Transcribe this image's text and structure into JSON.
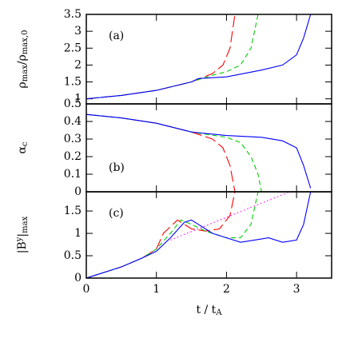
{
  "chart_data": [
    {
      "type": "line",
      "annotation": "(a)",
      "ylabel": [
        "ρ",
        "max",
        "/ρ",
        "max,0"
      ],
      "ylabel_style": [
        "n",
        "sub",
        "n",
        "sub"
      ],
      "xlim": [
        0,
        3.5
      ],
      "xticks": [
        0,
        1,
        2,
        3
      ],
      "ylim": [
        0.85,
        3.5
      ],
      "yticks": [
        1,
        1.5,
        2,
        2.5,
        3,
        3.5
      ],
      "series": [
        {
          "color": "#ff0000",
          "dash": "long",
          "x": [
            0,
            0.5,
            1,
            1.5,
            1.8,
            1.95,
            2.05,
            2.12
          ],
          "values": [
            1.0,
            1.1,
            1.25,
            1.5,
            1.75,
            2.0,
            2.5,
            3.5
          ]
        },
        {
          "color": "#00cc00",
          "dash": "short",
          "x": [
            0,
            0.5,
            1,
            1.5,
            1.8,
            2,
            2.2,
            2.35,
            2.45
          ],
          "values": [
            1.0,
            1.1,
            1.25,
            1.5,
            1.7,
            1.8,
            2.0,
            2.5,
            3.5
          ]
        },
        {
          "color": "#0000ff",
          "dash": "solid",
          "x": [
            0,
            0.5,
            1,
            1.5,
            1.6,
            2,
            2.5,
            2.8,
            3,
            3.1,
            3.2
          ],
          "values": [
            1.0,
            1.1,
            1.25,
            1.5,
            1.6,
            1.65,
            1.85,
            2.0,
            2.3,
            2.8,
            3.5
          ]
        }
      ]
    },
    {
      "type": "line",
      "annotation": "(b)",
      "ylabel": [
        "α",
        "c"
      ],
      "ylabel_style": [
        "n",
        "sub"
      ],
      "xlim": [
        0,
        3.5
      ],
      "xticks": [
        0,
        1,
        2,
        3
      ],
      "ylim": [
        0,
        0.5
      ],
      "yticks": [
        0,
        0.1,
        0.2,
        0.3,
        0.4,
        0.5
      ],
      "series": [
        {
          "color": "#ff0000",
          "dash": "long",
          "x": [
            0,
            0.5,
            1,
            1.5,
            1.8,
            1.95,
            2.05,
            2.12
          ],
          "values": [
            0.44,
            0.42,
            0.39,
            0.34,
            0.3,
            0.25,
            0.15,
            0
          ]
        },
        {
          "color": "#00cc00",
          "dash": "short",
          "x": [
            0,
            0.5,
            1,
            1.5,
            2,
            2.2,
            2.35,
            2.45,
            2.5
          ],
          "values": [
            0.44,
            0.42,
            0.39,
            0.34,
            0.31,
            0.28,
            0.2,
            0.1,
            0
          ]
        },
        {
          "color": "#0000ff",
          "dash": "solid",
          "x": [
            0,
            0.5,
            1,
            1.5,
            2,
            2.5,
            2.8,
            3,
            3.1,
            3.2
          ],
          "values": [
            0.44,
            0.42,
            0.39,
            0.34,
            0.32,
            0.31,
            0.29,
            0.25,
            0.15,
            0.02
          ]
        }
      ]
    },
    {
      "type": "line",
      "annotation": "(c)",
      "ylabel": [
        "|B",
        "y",
        "|",
        "max"
      ],
      "ylabel_style": [
        "n",
        "sup",
        "n",
        "sub"
      ],
      "xlabel": [
        "t / t",
        "A"
      ],
      "xlabel_style": [
        "n",
        "sub"
      ],
      "xlim": [
        0,
        3.5
      ],
      "xticks": [
        0,
        1,
        2,
        3
      ],
      "ylim": [
        0,
        1.93
      ],
      "yticks": [
        0,
        0.5,
        1,
        1.5
      ],
      "series": [
        {
          "color": "#ff0000",
          "dash": "long",
          "x": [
            0,
            0.5,
            0.8,
            1,
            1.1,
            1.3,
            1.5,
            1.7,
            1.9,
            2.05,
            2.12
          ],
          "values": [
            0,
            0.25,
            0.45,
            0.65,
            1.0,
            1.3,
            1.1,
            1.05,
            1.1,
            1.4,
            1.93
          ]
        },
        {
          "color": "#00cc00",
          "dash": "short",
          "x": [
            0,
            0.5,
            0.8,
            1,
            1.2,
            1.35,
            1.5,
            1.7,
            2,
            2.2,
            2.35,
            2.45
          ],
          "values": [
            0,
            0.25,
            0.45,
            0.65,
            1.0,
            1.3,
            1.2,
            1.05,
            0.9,
            0.9,
            1.2,
            1.93
          ]
        },
        {
          "color": "#0000ff",
          "dash": "solid",
          "x": [
            0,
            0.5,
            0.8,
            1,
            1.2,
            1.4,
            1.5,
            1.6,
            1.8,
            2,
            2.2,
            2.4,
            2.6,
            2.8,
            3,
            3.1,
            3.2
          ],
          "values": [
            0,
            0.25,
            0.45,
            0.6,
            0.9,
            1.25,
            1.3,
            1.2,
            1.0,
            0.9,
            0.8,
            0.85,
            0.9,
            0.8,
            0.85,
            1.2,
            1.93
          ]
        },
        {
          "color": "#ff00ff",
          "dash": "dot",
          "x": [
            1.2,
            2.9
          ],
          "values": [
            0.85,
            1.93
          ]
        }
      ]
    }
  ]
}
